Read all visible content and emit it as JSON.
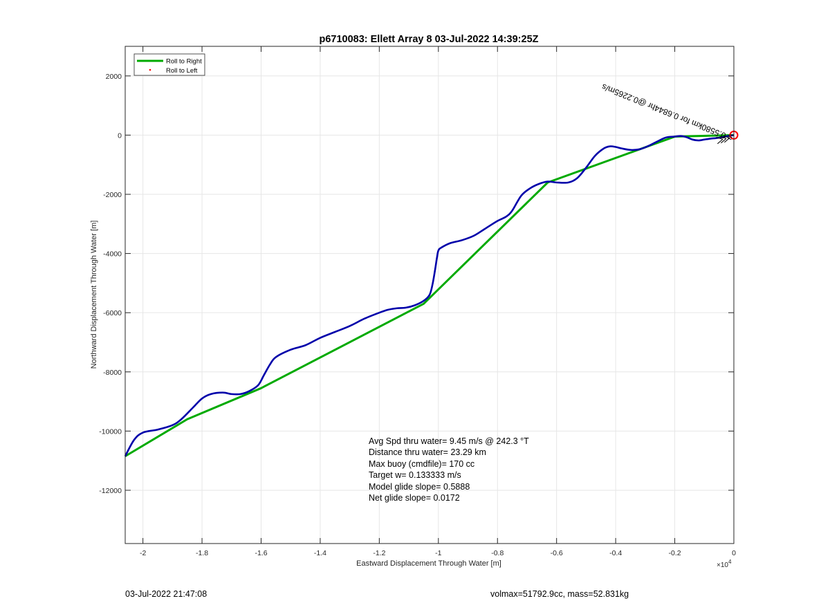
{
  "chart_data": {
    "type": "line",
    "title": "p6710083: Ellett Array 8 03-Jul-2022 14:39:25Z",
    "xlabel": "Eastward Displacement Through Water [m]",
    "ylabel": "Northward Displacement Through Water [m]",
    "x_exponent_label": "×10",
    "x_exponent_power": "4",
    "xlim": [
      -2.06,
      0
    ],
    "ylim": [
      -13800,
      3000
    ],
    "x_ticks": [
      -2,
      -1.8,
      -1.6,
      -1.4,
      -1.2,
      -1,
      -0.8,
      -0.6,
      -0.4,
      -0.2,
      0
    ],
    "x_tick_labels": [
      "-2",
      "-1.8",
      "-1.6",
      "-1.4",
      "-1.2",
      "-1",
      "-0.8",
      "-0.6",
      "-0.4",
      "-0.2",
      "0"
    ],
    "y_ticks": [
      2000,
      0,
      -2000,
      -4000,
      -6000,
      -8000,
      -10000,
      -12000
    ],
    "y_tick_labels": [
      "2000",
      "0",
      "-2000",
      "-4000",
      "-6000",
      "-8000",
      "-10000",
      "-12000"
    ],
    "grid": true,
    "legend_position": "top-left",
    "series": [
      {
        "name": "Roll to Right",
        "color": "#00aa00",
        "x": [
          -2.06,
          -1.85,
          -1.6,
          -1.05,
          -0.63,
          -0.2,
          0
        ],
        "y": [
          -10850,
          -9600,
          -8550,
          -5700,
          -1600,
          -50,
          0
        ]
      },
      {
        "name": "Roll to Left",
        "color": "#ff0000",
        "x": [],
        "y": []
      },
      {
        "name": "",
        "color": "#0000aa",
        "x": [
          -2.06,
          -2.03,
          -2.0,
          -1.95,
          -1.9,
          -1.87,
          -1.83,
          -1.8,
          -1.77,
          -1.73,
          -1.7,
          -1.67,
          -1.64,
          -1.61,
          -1.59,
          -1.57,
          -1.55,
          -1.5,
          -1.45,
          -1.4,
          -1.35,
          -1.3,
          -1.25,
          -1.2,
          -1.17,
          -1.14,
          -1.11,
          -1.08,
          -1.05,
          -1.03,
          -1.02,
          -1.012,
          -1.005,
          -1.0,
          -0.99,
          -0.96,
          -0.92,
          -0.88,
          -0.84,
          -0.8,
          -0.77,
          -0.75,
          -0.72,
          -0.69,
          -0.66,
          -0.63,
          -0.6,
          -0.56,
          -0.53,
          -0.5,
          -0.47,
          -0.44,
          -0.42,
          -0.4,
          -0.38,
          -0.35,
          -0.32,
          -0.29,
          -0.26,
          -0.23,
          -0.2,
          -0.18,
          -0.16,
          -0.14,
          -0.12,
          -0.1,
          -0.08,
          -0.06,
          -0.04,
          -0.02,
          0
        ],
        "y": [
          -10850,
          -10300,
          -10050,
          -9950,
          -9800,
          -9600,
          -9200,
          -8900,
          -8750,
          -8700,
          -8750,
          -8750,
          -8650,
          -8450,
          -8100,
          -7750,
          -7500,
          -7250,
          -7100,
          -6850,
          -6650,
          -6450,
          -6200,
          -6000,
          -5900,
          -5850,
          -5830,
          -5750,
          -5600,
          -5400,
          -5050,
          -4600,
          -4150,
          -3900,
          -3800,
          -3650,
          -3550,
          -3400,
          -3150,
          -2900,
          -2750,
          -2550,
          -2050,
          -1800,
          -1650,
          -1570,
          -1600,
          -1600,
          -1450,
          -1100,
          -700,
          -450,
          -380,
          -400,
          -450,
          -500,
          -480,
          -370,
          -220,
          -80,
          -50,
          -30,
          -70,
          -150,
          -180,
          -150,
          -120,
          -100,
          -70,
          -30,
          0
        ]
      }
    ],
    "annotation_rotated": "= 0.5580km for 0.6844hr @0.2265m/s",
    "stats": [
      "Avg Spd thru water=  9.45 m/s @ 242.3 °T",
      "Distance thru water= 23.29 km",
      "Max buoy (cmdfile)= 170 cc",
      "Target w= 0.133333 m/s",
      "Model glide slope= 0.5888",
      "Net glide slope= 0.0172"
    ],
    "end_marker_color": "#ff0000"
  },
  "footer": {
    "timestamp": "03-Jul-2022 21:47:08",
    "vol_mass": "volmax=51792.9cc, mass=52.831kg"
  }
}
